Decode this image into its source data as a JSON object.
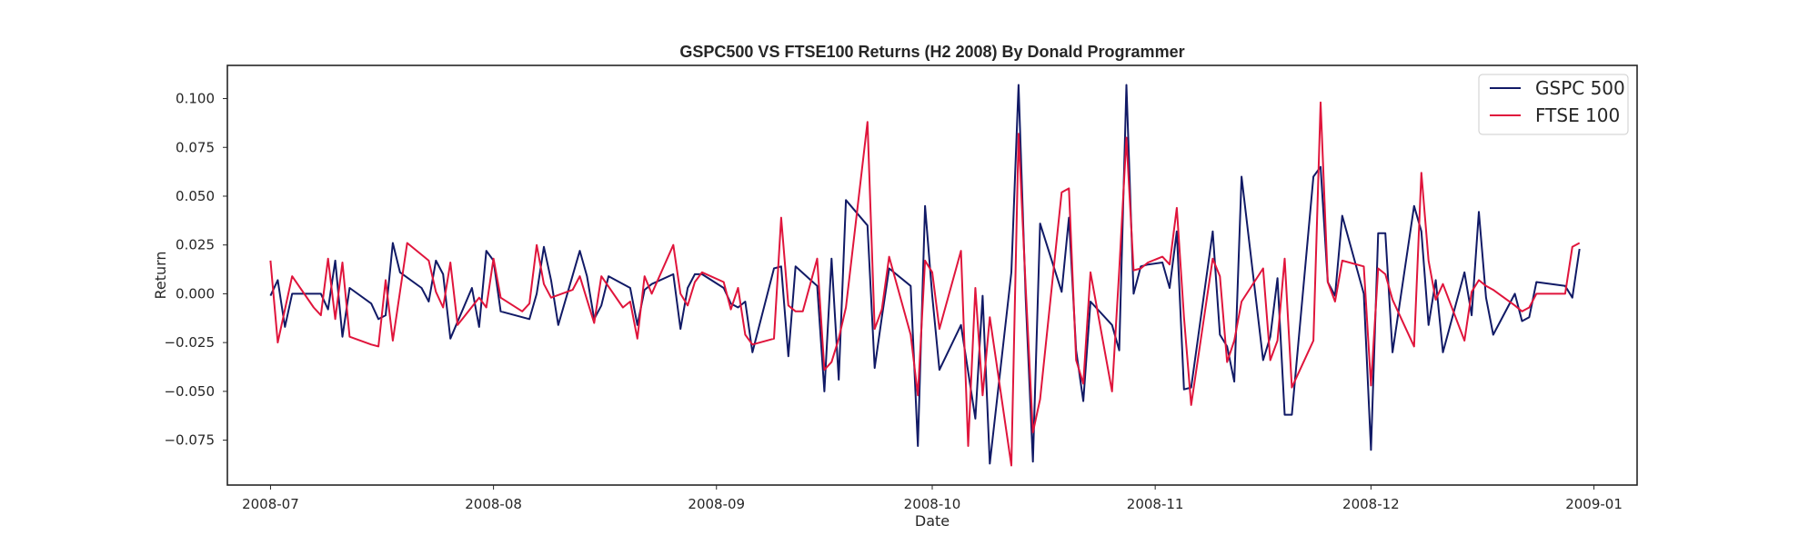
{
  "chart_data": {
    "type": "line",
    "title": "GSPC500 VS FTSE100 Returns (H2 2008) By Donald Programmer",
    "xlabel": "Date",
    "ylabel": "Return",
    "x_range": [
      "2008-06-25",
      "2009-01-07"
    ],
    "ylim": [
      -0.098,
      0.117
    ],
    "x_ticks": [
      "2008-07-01",
      "2008-08-01",
      "2008-09-01",
      "2008-10-01",
      "2008-11-01",
      "2008-12-01",
      "2009-01-01"
    ],
    "x_tick_labels": [
      "2008-07",
      "2008-08",
      "2008-09",
      "2008-10",
      "2008-11",
      "2008-12",
      "2009-01"
    ],
    "y_ticks": [
      0.1,
      0.075,
      0.05,
      0.025,
      0.0,
      -0.025,
      -0.05,
      -0.075
    ],
    "y_tick_labels": [
      "0.100",
      "0.075",
      "0.050",
      "0.025",
      "0.000",
      "−0.025",
      "−0.050",
      "−0.075"
    ],
    "grid": false,
    "legend_position": "top-right",
    "series": [
      {
        "name": "GSPC 500",
        "color": "#111a66",
        "points": [
          [
            "2008-07-01",
            -0.001
          ],
          [
            "2008-07-02",
            0.007
          ],
          [
            "2008-07-03",
            -0.017
          ],
          [
            "2008-07-04",
            0.0
          ],
          [
            "2008-07-07",
            0.0
          ],
          [
            "2008-07-08",
            0.0
          ],
          [
            "2008-07-09",
            -0.008
          ],
          [
            "2008-07-10",
            0.017
          ],
          [
            "2008-07-11",
            -0.022
          ],
          [
            "2008-07-12",
            0.003
          ],
          [
            "2008-07-15",
            -0.005
          ],
          [
            "2008-07-16",
            -0.013
          ],
          [
            "2008-07-17",
            -0.011
          ],
          [
            "2008-07-18",
            0.026
          ],
          [
            "2008-07-19",
            0.011
          ],
          [
            "2008-07-22",
            0.003
          ],
          [
            "2008-07-23",
            -0.004
          ],
          [
            "2008-07-24",
            0.017
          ],
          [
            "2008-07-25",
            0.01
          ],
          [
            "2008-07-26",
            -0.023
          ],
          [
            "2008-07-29",
            0.003
          ],
          [
            "2008-07-30",
            -0.017
          ],
          [
            "2008-07-31",
            0.022
          ],
          [
            "2008-08-01",
            0.017
          ],
          [
            "2008-08-02",
            -0.009
          ],
          [
            "2008-08-05",
            -0.012
          ],
          [
            "2008-08-06",
            -0.013
          ],
          [
            "2008-08-07",
            0.0
          ],
          [
            "2008-08-08",
            0.024
          ],
          [
            "2008-08-09",
            0.007
          ],
          [
            "2008-08-10",
            -0.016
          ],
          [
            "2008-08-13",
            0.022
          ],
          [
            "2008-08-14",
            0.009
          ],
          [
            "2008-08-15",
            -0.013
          ],
          [
            "2008-08-16",
            -0.006
          ],
          [
            "2008-08-17",
            0.009
          ],
          [
            "2008-08-20",
            0.003
          ],
          [
            "2008-08-21",
            -0.016
          ],
          [
            "2008-08-22",
            0.002
          ],
          [
            "2008-08-23",
            0.005
          ],
          [
            "2008-08-26",
            0.01
          ],
          [
            "2008-08-27",
            -0.018
          ],
          [
            "2008-08-28",
            0.003
          ],
          [
            "2008-08-29",
            0.01
          ],
          [
            "2008-08-30",
            0.01
          ],
          [
            "2008-09-02",
            0.003
          ],
          [
            "2008-09-03",
            -0.005
          ],
          [
            "2008-09-04",
            -0.007
          ],
          [
            "2008-09-05",
            -0.004
          ],
          [
            "2008-09-06",
            -0.03
          ],
          [
            "2008-09-09",
            0.013
          ],
          [
            "2008-09-10",
            0.014
          ],
          [
            "2008-09-11",
            -0.032
          ],
          [
            "2008-09-12",
            0.014
          ],
          [
            "2008-09-15",
            0.004
          ],
          [
            "2008-09-16",
            -0.05
          ],
          [
            "2008-09-17",
            0.018
          ],
          [
            "2008-09-18",
            -0.044
          ],
          [
            "2008-09-19",
            0.048
          ],
          [
            "2008-09-22",
            0.035
          ],
          [
            "2008-09-23",
            -0.038
          ],
          [
            "2008-09-24",
            -0.012
          ],
          [
            "2008-09-25",
            0.013
          ],
          [
            "2008-09-28",
            0.004
          ],
          [
            "2008-09-29",
            -0.078
          ],
          [
            "2008-09-30",
            0.045
          ],
          [
            "2008-10-01",
            -0.001
          ],
          [
            "2008-10-02",
            -0.039
          ],
          [
            "2008-10-05",
            -0.016
          ],
          [
            "2008-10-06",
            -0.04
          ],
          [
            "2008-10-07",
            -0.064
          ],
          [
            "2008-10-08",
            -0.001
          ],
          [
            "2008-10-09",
            -0.087
          ],
          [
            "2008-10-12",
            0.011
          ],
          [
            "2008-10-13",
            0.107
          ],
          [
            "2008-10-14",
            -0.003
          ],
          [
            "2008-10-15",
            -0.086
          ],
          [
            "2008-10-16",
            0.036
          ],
          [
            "2008-10-19",
            0.001
          ],
          [
            "2008-10-20",
            0.039
          ],
          [
            "2008-10-21",
            -0.029
          ],
          [
            "2008-10-22",
            -0.055
          ],
          [
            "2008-10-23",
            -0.004
          ],
          [
            "2008-10-26",
            -0.016
          ],
          [
            "2008-10-27",
            -0.029
          ],
          [
            "2008-10-28",
            0.107
          ],
          [
            "2008-10-29",
            0.0
          ],
          [
            "2008-10-30",
            0.014
          ],
          [
            "2008-10-31",
            0.015
          ],
          [
            "2008-11-02",
            0.016
          ],
          [
            "2008-11-03",
            0.003
          ],
          [
            "2008-11-04",
            0.032
          ],
          [
            "2008-11-05",
            -0.049
          ],
          [
            "2008-11-06",
            -0.048
          ],
          [
            "2008-11-09",
            0.032
          ],
          [
            "2008-11-10",
            -0.021
          ],
          [
            "2008-11-11",
            -0.027
          ],
          [
            "2008-11-12",
            -0.045
          ],
          [
            "2008-11-13",
            0.06
          ],
          [
            "2008-11-16",
            -0.034
          ],
          [
            "2008-11-17",
            -0.022
          ],
          [
            "2008-11-18",
            0.008
          ],
          [
            "2008-11-19",
            -0.062
          ],
          [
            "2008-11-20",
            -0.062
          ],
          [
            "2008-11-23",
            0.06
          ],
          [
            "2008-11-24",
            0.065
          ],
          [
            "2008-11-25",
            0.006
          ],
          [
            "2008-11-26",
            -0.001
          ],
          [
            "2008-11-27",
            0.04
          ],
          [
            "2008-11-30",
            0.0
          ],
          [
            "2008-12-01",
            -0.08
          ],
          [
            "2008-12-02",
            0.031
          ],
          [
            "2008-12-03",
            0.031
          ],
          [
            "2008-12-04",
            -0.03
          ],
          [
            "2008-12-07",
            0.045
          ],
          [
            "2008-12-08",
            0.032
          ],
          [
            "2008-12-09",
            -0.016
          ],
          [
            "2008-12-10",
            0.007
          ],
          [
            "2008-12-11",
            -0.03
          ],
          [
            "2008-12-14",
            0.011
          ],
          [
            "2008-12-15",
            -0.011
          ],
          [
            "2008-12-16",
            0.042
          ],
          [
            "2008-12-17",
            -0.002
          ],
          [
            "2008-12-18",
            -0.021
          ],
          [
            "2008-12-21",
            0.0
          ],
          [
            "2008-12-22",
            -0.014
          ],
          [
            "2008-12-23",
            -0.012
          ],
          [
            "2008-12-24",
            0.006
          ],
          [
            "2008-12-28",
            0.004
          ],
          [
            "2008-12-29",
            -0.002
          ],
          [
            "2008-12-30",
            0.023
          ]
        ]
      },
      {
        "name": "FTSE 100",
        "color": "#e0153c",
        "points": [
          [
            "2008-07-01",
            0.017
          ],
          [
            "2008-07-02",
            -0.025
          ],
          [
            "2008-07-04",
            0.009
          ],
          [
            "2008-07-07",
            -0.007
          ],
          [
            "2008-07-08",
            -0.011
          ],
          [
            "2008-07-09",
            0.018
          ],
          [
            "2008-07-10",
            -0.013
          ],
          [
            "2008-07-11",
            0.016
          ],
          [
            "2008-07-12",
            -0.022
          ],
          [
            "2008-07-15",
            -0.026
          ],
          [
            "2008-07-16",
            -0.027
          ],
          [
            "2008-07-17",
            0.007
          ],
          [
            "2008-07-18",
            -0.024
          ],
          [
            "2008-07-20",
            0.026
          ],
          [
            "2008-07-23",
            0.017
          ],
          [
            "2008-07-24",
            0.001
          ],
          [
            "2008-07-25",
            -0.007
          ],
          [
            "2008-07-26",
            0.016
          ],
          [
            "2008-07-27",
            -0.016
          ],
          [
            "2008-07-30",
            -0.002
          ],
          [
            "2008-07-31",
            -0.007
          ],
          [
            "2008-08-01",
            0.018
          ],
          [
            "2008-08-02",
            -0.002
          ],
          [
            "2008-08-05",
            -0.009
          ],
          [
            "2008-08-06",
            -0.005
          ],
          [
            "2008-08-07",
            0.025
          ],
          [
            "2008-08-08",
            0.005
          ],
          [
            "2008-08-09",
            -0.002
          ],
          [
            "2008-08-12",
            0.002
          ],
          [
            "2008-08-13",
            0.009
          ],
          [
            "2008-08-14",
            -0.003
          ],
          [
            "2008-08-15",
            -0.015
          ],
          [
            "2008-08-16",
            0.009
          ],
          [
            "2008-08-19",
            -0.007
          ],
          [
            "2008-08-20",
            -0.004
          ],
          [
            "2008-08-21",
            -0.023
          ],
          [
            "2008-08-22",
            0.009
          ],
          [
            "2008-08-23",
            0.0
          ],
          [
            "2008-08-26",
            0.025
          ],
          [
            "2008-08-27",
            0.0
          ],
          [
            "2008-08-28",
            -0.006
          ],
          [
            "2008-08-29",
            0.006
          ],
          [
            "2008-08-30",
            0.011
          ],
          [
            "2008-09-02",
            0.006
          ],
          [
            "2008-09-03",
            -0.008
          ],
          [
            "2008-09-04",
            0.003
          ],
          [
            "2008-09-05",
            -0.021
          ],
          [
            "2008-09-06",
            -0.026
          ],
          [
            "2008-09-09",
            -0.023
          ],
          [
            "2008-09-10",
            0.039
          ],
          [
            "2008-09-11",
            -0.006
          ],
          [
            "2008-09-12",
            -0.009
          ],
          [
            "2008-09-13",
            -0.009
          ],
          [
            "2008-09-15",
            0.018
          ],
          [
            "2008-09-16",
            -0.039
          ],
          [
            "2008-09-17",
            -0.035
          ],
          [
            "2008-09-18",
            -0.023
          ],
          [
            "2008-09-19",
            -0.007
          ],
          [
            "2008-09-22",
            0.088
          ],
          [
            "2008-09-23",
            -0.018
          ],
          [
            "2008-09-24",
            -0.008
          ],
          [
            "2008-09-25",
            0.019
          ],
          [
            "2008-09-28",
            -0.021
          ],
          [
            "2008-09-29",
            -0.052
          ],
          [
            "2008-09-30",
            0.017
          ],
          [
            "2008-10-01",
            0.011
          ],
          [
            "2008-10-02",
            -0.018
          ],
          [
            "2008-10-05",
            0.022
          ],
          [
            "2008-10-06",
            -0.078
          ],
          [
            "2008-10-07",
            0.003
          ],
          [
            "2008-10-08",
            -0.052
          ],
          [
            "2008-10-09",
            -0.012
          ],
          [
            "2008-10-12",
            -0.088
          ],
          [
            "2008-10-13",
            0.082
          ],
          [
            "2008-10-14",
            0.003
          ],
          [
            "2008-10-15",
            -0.071
          ],
          [
            "2008-10-16",
            -0.054
          ],
          [
            "2008-10-19",
            0.052
          ],
          [
            "2008-10-20",
            0.054
          ],
          [
            "2008-10-21",
            -0.034
          ],
          [
            "2008-10-22",
            -0.046
          ],
          [
            "2008-10-23",
            0.011
          ],
          [
            "2008-10-26",
            -0.05
          ],
          [
            "2008-10-27",
            0.012
          ],
          [
            "2008-10-28",
            0.08
          ],
          [
            "2008-10-29",
            0.012
          ],
          [
            "2008-10-30",
            0.013
          ],
          [
            "2008-10-31",
            0.016
          ],
          [
            "2008-11-02",
            0.019
          ],
          [
            "2008-11-03",
            0.015
          ],
          [
            "2008-11-04",
            0.044
          ],
          [
            "2008-11-05",
            -0.012
          ],
          [
            "2008-11-06",
            -0.057
          ],
          [
            "2008-11-09",
            0.018
          ],
          [
            "2008-11-10",
            0.009
          ],
          [
            "2008-11-11",
            -0.035
          ],
          [
            "2008-11-12",
            -0.024
          ],
          [
            "2008-11-13",
            -0.004
          ],
          [
            "2008-11-16",
            0.013
          ],
          [
            "2008-11-17",
            -0.034
          ],
          [
            "2008-11-18",
            -0.024
          ],
          [
            "2008-11-19",
            0.018
          ],
          [
            "2008-11-20",
            -0.048
          ],
          [
            "2008-11-23",
            -0.024
          ],
          [
            "2008-11-24",
            0.098
          ],
          [
            "2008-11-25",
            0.006
          ],
          [
            "2008-11-26",
            -0.004
          ],
          [
            "2008-11-27",
            0.017
          ],
          [
            "2008-11-30",
            0.014
          ],
          [
            "2008-12-01",
            -0.047
          ],
          [
            "2008-12-02",
            0.013
          ],
          [
            "2008-12-03",
            0.01
          ],
          [
            "2008-12-04",
            -0.003
          ],
          [
            "2008-12-07",
            -0.027
          ],
          [
            "2008-12-08",
            0.062
          ],
          [
            "2008-12-09",
            0.017
          ],
          [
            "2008-12-10",
            -0.003
          ],
          [
            "2008-12-11",
            0.005
          ],
          [
            "2008-12-14",
            -0.024
          ],
          [
            "2008-12-15",
            0.001
          ],
          [
            "2008-12-16",
            0.007
          ],
          [
            "2008-12-17",
            0.004
          ],
          [
            "2008-12-18",
            0.002
          ],
          [
            "2008-12-21",
            -0.006
          ],
          [
            "2008-12-22",
            -0.009
          ],
          [
            "2008-12-23",
            -0.007
          ],
          [
            "2008-12-24",
            0.0
          ],
          [
            "2008-12-28",
            0.0
          ],
          [
            "2008-12-29",
            0.024
          ],
          [
            "2008-12-30",
            0.026
          ]
        ]
      }
    ]
  }
}
